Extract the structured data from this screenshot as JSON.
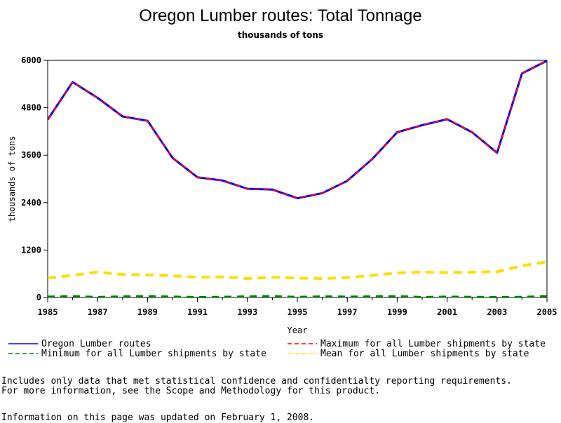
{
  "chart_data": {
    "type": "line",
    "title": "Oregon Lumber routes: Total Tonnage",
    "subtitle": "thousands of tons",
    "xlabel": "Year",
    "ylabel": "thousands of tons",
    "xlim": [
      1985,
      2005
    ],
    "ylim": [
      0,
      6000
    ],
    "x_ticks": [
      "1985",
      "1987",
      "1989",
      "1991",
      "1993",
      "1995",
      "1997",
      "1999",
      "2001",
      "2003",
      "2005"
    ],
    "y_ticks": [
      "0",
      "1200",
      "2400",
      "3600",
      "4800",
      "6000"
    ],
    "x": [
      1985,
      1986,
      1987,
      1988,
      1989,
      1990,
      1991,
      1992,
      1993,
      1994,
      1995,
      1996,
      1997,
      1998,
      1999,
      2000,
      2001,
      2002,
      2003,
      2004,
      2005
    ],
    "grid": false,
    "legend_position": "bottom",
    "series": [
      {
        "name": "Oregon Lumber routes",
        "color": "#0000ff",
        "style": "solid",
        "values": [
          4500,
          5450,
          5050,
          4580,
          4470,
          3530,
          3040,
          2960,
          2750,
          2730,
          2510,
          2640,
          2950,
          3500,
          4180,
          4360,
          4510,
          4180,
          3660,
          5670,
          5990
        ]
      },
      {
        "name": "Maximum for all Lumber shipments by state",
        "color": "#ff0000",
        "style": "dashed",
        "values": [
          4500,
          5450,
          5050,
          4580,
          4470,
          3530,
          3040,
          2960,
          2750,
          2730,
          2510,
          2640,
          2950,
          3500,
          4180,
          4360,
          4510,
          4180,
          3660,
          5670,
          5990
        ]
      },
      {
        "name": "Minimum for all Lumber shipments by state",
        "color": "#008000",
        "style": "dashed",
        "values": [
          20,
          30,
          10,
          25,
          30,
          20,
          10,
          15,
          25,
          30,
          15,
          25,
          20,
          25,
          30,
          10,
          20,
          15,
          10,
          15,
          30
        ]
      },
      {
        "name": "Mean for all Lumber shipments by state",
        "color": "#ffdd00",
        "style": "dashed",
        "values": [
          490,
          560,
          640,
          580,
          570,
          550,
          510,
          520,
          480,
          510,
          490,
          480,
          500,
          560,
          620,
          640,
          630,
          640,
          650,
          800,
          900
        ]
      }
    ]
  },
  "notes": {
    "line1": "Includes only data that met statistical confidence and confidentialty reporting requirements.",
    "line2": "For more information, see the Scope and Methodology for this product.",
    "updated": "Information on this page was updated on February 1, 2008."
  }
}
